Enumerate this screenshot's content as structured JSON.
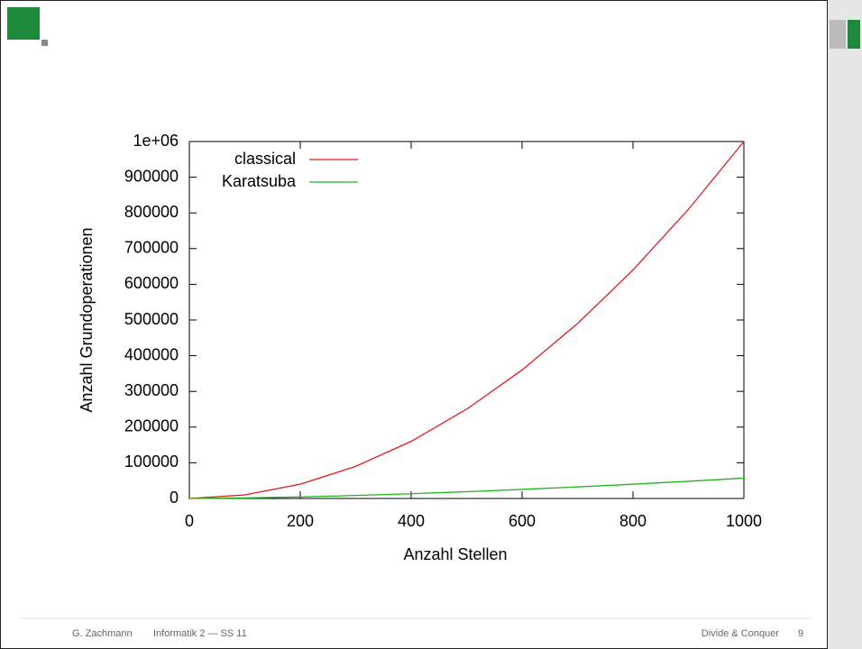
{
  "chart_data": {
    "type": "line",
    "x": [
      0,
      100,
      200,
      300,
      400,
      500,
      600,
      700,
      800,
      900,
      1000
    ],
    "series": [
      {
        "name": "classical",
        "color": "#e41a1c",
        "values": [
          0,
          10000,
          40000,
          90000,
          160000,
          250000,
          360000,
          490000,
          640000,
          810000,
          1000000
        ]
      },
      {
        "name": "Karatsuba",
        "color": "#1fb51f",
        "values": [
          0,
          1480,
          4440,
          8440,
          13330,
          18990,
          25350,
          32330,
          39960,
          48180,
          56930
        ]
      }
    ],
    "xlabel": "Anzahl Stellen",
    "ylabel": "Anzahl Grundoperationen",
    "xlim": [
      0,
      1000
    ],
    "ylim": [
      0,
      1000000
    ],
    "xticks": [
      0,
      200,
      400,
      600,
      800,
      1000
    ],
    "yticks": [
      0,
      100000,
      200000,
      300000,
      400000,
      500000,
      600000,
      700000,
      800000,
      900000,
      {
        "value": 1000000,
        "label": "1e+06"
      }
    ],
    "legend": "top-left"
  },
  "footer": {
    "author": "G. Zachmann",
    "course": "Informatik 2 — SS 11",
    "topic": "Divide & Conquer",
    "page": "9"
  }
}
